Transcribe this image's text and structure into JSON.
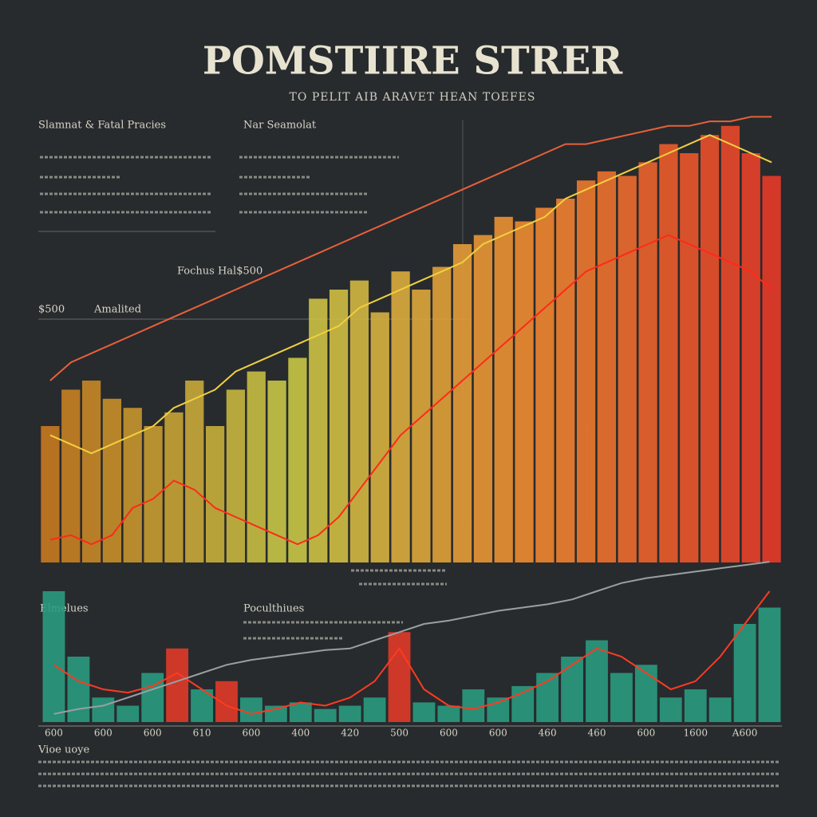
{
  "header": {
    "title": "POMSTIIRE STRER",
    "subtitle": "TO PELIT AIB ARAVET HEAN TOEFES"
  },
  "panels": {
    "left_heading": "Slamnat & Fatal Pracies",
    "mid_heading": "Nar Seamolat",
    "focus": "Fochus Hal$500",
    "amount": "$500",
    "label": "Amalited",
    "bottom_left": "Elmelues",
    "bottom_mid": "Poculthiues",
    "footer": "Vioe uoye"
  },
  "chart_data": [
    {
      "type": "bar",
      "ylim": [
        0,
        100
      ],
      "series": [
        {
          "type": "bar",
          "colors": [
            "#c87a20",
            "#c8c848",
            "#f08a30",
            "#e83a28"
          ],
          "values": [
            30,
            38,
            40,
            36,
            34,
            30,
            33,
            40,
            30,
            38,
            42,
            40,
            45,
            58,
            60,
            62,
            55,
            64,
            60,
            65,
            70,
            72,
            76,
            75,
            78,
            80,
            84,
            86,
            85,
            88,
            92,
            90,
            94,
            96,
            90,
            85
          ]
        },
        {
          "type": "line",
          "color": "#ff2a1a",
          "values": [
            5,
            6,
            4,
            6,
            12,
            14,
            18,
            16,
            12,
            10,
            8,
            6,
            4,
            6,
            10,
            16,
            22,
            28,
            32,
            36,
            40,
            44,
            48,
            52,
            56,
            60,
            64,
            66,
            68,
            70,
            72,
            70,
            68,
            66,
            64,
            60
          ]
        },
        {
          "type": "line",
          "color": "#f0d040",
          "values": [
            28,
            26,
            24,
            26,
            28,
            30,
            34,
            36,
            38,
            42,
            44,
            46,
            48,
            50,
            52,
            56,
            58,
            60,
            62,
            64,
            66,
            70,
            72,
            74,
            76,
            80,
            82,
            84,
            86,
            88,
            90,
            92,
            94,
            92,
            90,
            88
          ]
        },
        {
          "type": "line",
          "color": "#e8603a",
          "values": [
            40,
            44,
            46,
            48,
            50,
            52,
            54,
            56,
            58,
            60,
            62,
            64,
            66,
            68,
            70,
            72,
            74,
            76,
            78,
            80,
            82,
            84,
            86,
            88,
            90,
            92,
            92,
            93,
            94,
            95,
            96,
            96,
            97,
            97,
            98,
            98
          ]
        }
      ]
    },
    {
      "type": "bar",
      "ylim": [
        0,
        100
      ],
      "categories": [
        "600",
        null,
        "600",
        null,
        "600",
        null,
        "610",
        null,
        "600",
        null,
        "400",
        null,
        "420",
        null,
        "500",
        null,
        "600",
        null,
        "600",
        null,
        "460",
        null,
        "460",
        null,
        "600",
        null,
        "1600",
        null,
        "A600",
        null
      ],
      "series": [
        {
          "type": "bar",
          "color": "#2a9a80",
          "values": [
            80,
            40,
            15,
            10,
            30,
            null,
            20,
            null,
            15,
            10,
            12,
            8,
            10,
            15,
            null,
            12,
            10,
            20,
            15,
            22,
            30,
            40,
            50,
            30,
            35,
            15,
            20,
            15,
            60,
            70
          ]
        },
        {
          "type": "bar",
          "color": "#e03a28",
          "values": [
            null,
            null,
            null,
            null,
            null,
            45,
            null,
            25,
            null,
            null,
            null,
            null,
            null,
            null,
            55,
            null,
            null,
            null,
            null,
            null,
            null,
            null,
            null,
            null,
            null,
            null,
            null,
            null,
            null,
            null
          ]
        },
        {
          "type": "line",
          "color": "#ff3a22",
          "values": [
            35,
            25,
            20,
            18,
            22,
            30,
            20,
            10,
            5,
            8,
            12,
            10,
            15,
            25,
            45,
            20,
            10,
            8,
            12,
            18,
            25,
            35,
            45,
            40,
            30,
            20,
            25,
            40,
            60,
            80
          ]
        },
        {
          "type": "line",
          "color": "#9aa0a0",
          "values": [
            5,
            8,
            10,
            15,
            20,
            25,
            30,
            35,
            38,
            40,
            42,
            44,
            45,
            50,
            55,
            60,
            62,
            65,
            68,
            70,
            72,
            75,
            80,
            85,
            88,
            90,
            92,
            94,
            96,
            98
          ]
        }
      ]
    }
  ]
}
